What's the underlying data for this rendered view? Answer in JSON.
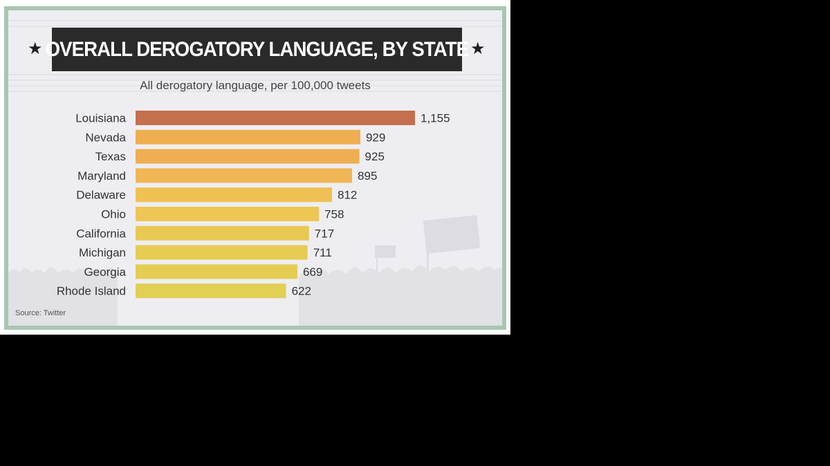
{
  "chart_data": {
    "type": "bar",
    "orientation": "horizontal",
    "title": "OVERALL DEROGATORY LANGUAGE, BY STATE",
    "subtitle": "All derogatory language, per 100,000 tweets",
    "categories": [
      "Louisiana",
      "Nevada",
      "Texas",
      "Maryland",
      "Delaware",
      "Ohio",
      "California",
      "Michigan",
      "Georgia",
      "Rhode Island"
    ],
    "values": [
      1155,
      929,
      925,
      895,
      812,
      758,
      717,
      711,
      669,
      622
    ],
    "value_labels": [
      "1,155",
      "929",
      "925",
      "895",
      "812",
      "758",
      "717",
      "711",
      "669",
      "622"
    ],
    "xlim": [
      0,
      1155
    ],
    "grid": false,
    "colors": [
      "#c46f4d",
      "#efae52",
      "#efae52",
      "#f0b655",
      "#efc152",
      "#eec653",
      "#e8c954",
      "#e6cb54",
      "#e4cd52",
      "#e2cf55"
    ],
    "source": "Source: Twitter"
  }
}
